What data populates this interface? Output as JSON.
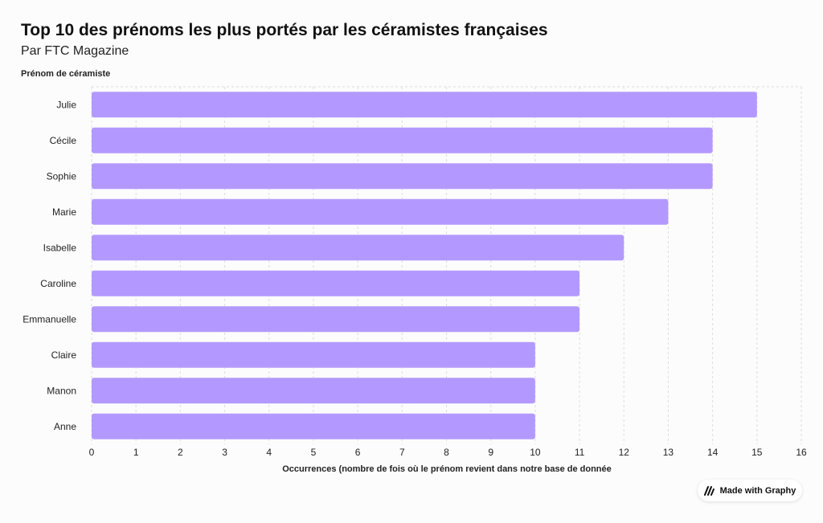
{
  "header": {
    "title": "Top 10 des prénoms les plus portés par les céramistes françaises",
    "subtitle": "Par FTC Magazine"
  },
  "badge": {
    "label": "Made with Graphy",
    "logo_icon": "graphy-logo-icon"
  },
  "colors": {
    "bar": "#b399ff",
    "grid": "#dddddd",
    "text": "#222222"
  },
  "chart_data": {
    "type": "bar",
    "orientation": "horizontal",
    "ylabel": "Prénom de céramiste",
    "xlabel": "Occurrences (nombre de fois où le prénom revient dans notre base de donnée",
    "categories": [
      "Julie",
      "Cécile",
      "Sophie",
      "Marie",
      "Isabelle",
      "Caroline",
      "Emmanuelle",
      "Claire",
      "Manon",
      "Anne"
    ],
    "values": [
      15,
      14,
      14,
      13,
      12,
      11,
      11,
      10,
      10,
      10
    ],
    "xlim": [
      0,
      16
    ],
    "xticks": [
      "0",
      "1",
      "2",
      "3",
      "4",
      "5",
      "6",
      "7",
      "8",
      "9",
      "10",
      "11",
      "12",
      "13",
      "14",
      "15",
      "16"
    ],
    "grid": true,
    "legend": "none"
  }
}
